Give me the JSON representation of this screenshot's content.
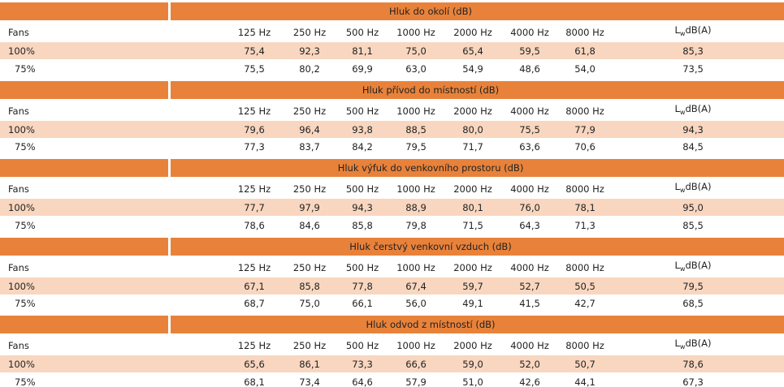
{
  "sections": [
    {
      "title": "Hluk do okolí (dB)",
      "header": [
        "Fans",
        "125 Hz",
        "250 Hz",
        "500 Hz",
        "1000 Hz",
        "2000 Hz",
        "4000 Hz",
        "8000 Hz"
      ],
      "level_header": {
        "symbol": "L",
        "subscript": "w",
        "unit": "dB(A)"
      },
      "rows": [
        {
          "label": "100%",
          "cells": [
            "75,4",
            "92,3",
            "81,1",
            "75,0",
            "65,4",
            "59,5",
            "61,8",
            "85,3"
          ]
        },
        {
          "label": "75%",
          "cells": [
            "75,5",
            "80,2",
            "69,9",
            "63,0",
            "54,9",
            "48,6",
            "54,0",
            "73,5"
          ]
        }
      ]
    },
    {
      "title": "Hluk přívod do místností (dB)",
      "header": [
        "Fans",
        "125 Hz",
        "250 Hz",
        "500 Hz",
        "1000 Hz",
        "2000 Hz",
        "4000 Hz",
        "8000 Hz"
      ],
      "level_header": {
        "symbol": "L",
        "subscript": "w",
        "unit": "dB(A)"
      },
      "rows": [
        {
          "label": "100%",
          "cells": [
            "79,6",
            "96,4",
            "93,8",
            "88,5",
            "80,0",
            "75,5",
            "77,9",
            "94,3"
          ]
        },
        {
          "label": "75%",
          "cells": [
            "77,3",
            "83,7",
            "84,2",
            "79,5",
            "71,7",
            "63,6",
            "70,6",
            "84,5"
          ]
        }
      ]
    },
    {
      "title": "Hluk výfuk do venkovního prostoru (dB)",
      "header": [
        "Fans",
        "125 Hz",
        "250 Hz",
        "500 Hz",
        "1000 Hz",
        "2000 Hz",
        "4000 Hz",
        "8000 Hz"
      ],
      "level_header": {
        "symbol": "L",
        "subscript": "w",
        "unit": "dB(A)"
      },
      "rows": [
        {
          "label": "100%",
          "cells": [
            "77,7",
            "97,9",
            "94,3",
            "88,9",
            "80,1",
            "76,0",
            "78,1",
            "95,0"
          ]
        },
        {
          "label": "75%",
          "cells": [
            "78,6",
            "84,6",
            "85,8",
            "79,8",
            "71,5",
            "64,3",
            "71,3",
            "85,5"
          ]
        }
      ]
    },
    {
      "title": "Hluk čerstvý venkovní vzduch (dB)",
      "header": [
        "Fans",
        "125 Hz",
        "250 Hz",
        "500 Hz",
        "1000 Hz",
        "2000 Hz",
        "4000 Hz",
        "8000 Hz"
      ],
      "level_header": {
        "symbol": "L",
        "subscript": "w",
        "unit": "dB(A)"
      },
      "rows": [
        {
          "label": "100%",
          "cells": [
            "67,1",
            "85,8",
            "77,8",
            "67,4",
            "59,7",
            "52,7",
            "50,5",
            "79,5"
          ]
        },
        {
          "label": "75%",
          "cells": [
            "68,7",
            "75,0",
            "66,1",
            "56,0",
            "49,1",
            "41,5",
            "42,7",
            "68,5"
          ]
        }
      ]
    },
    {
      "title": "Hluk odvod z místností (dB)",
      "header": [
        "Fans",
        "125 Hz",
        "250 Hz",
        "500 Hz",
        "1000 Hz",
        "2000 Hz",
        "4000 Hz",
        "8000 Hz"
      ],
      "level_header": {
        "symbol": "L",
        "subscript": "w",
        "unit": "dB(A)"
      },
      "rows": [
        {
          "label": "100%",
          "cells": [
            "65,6",
            "86,1",
            "73,3",
            "66,6",
            "59,0",
            "52,0",
            "50,7",
            "78,6"
          ]
        },
        {
          "label": "75%",
          "cells": [
            "68,1",
            "73,4",
            "64,6",
            "57,9",
            "51,0",
            "42,6",
            "44,1",
            "67,3"
          ]
        }
      ]
    }
  ]
}
